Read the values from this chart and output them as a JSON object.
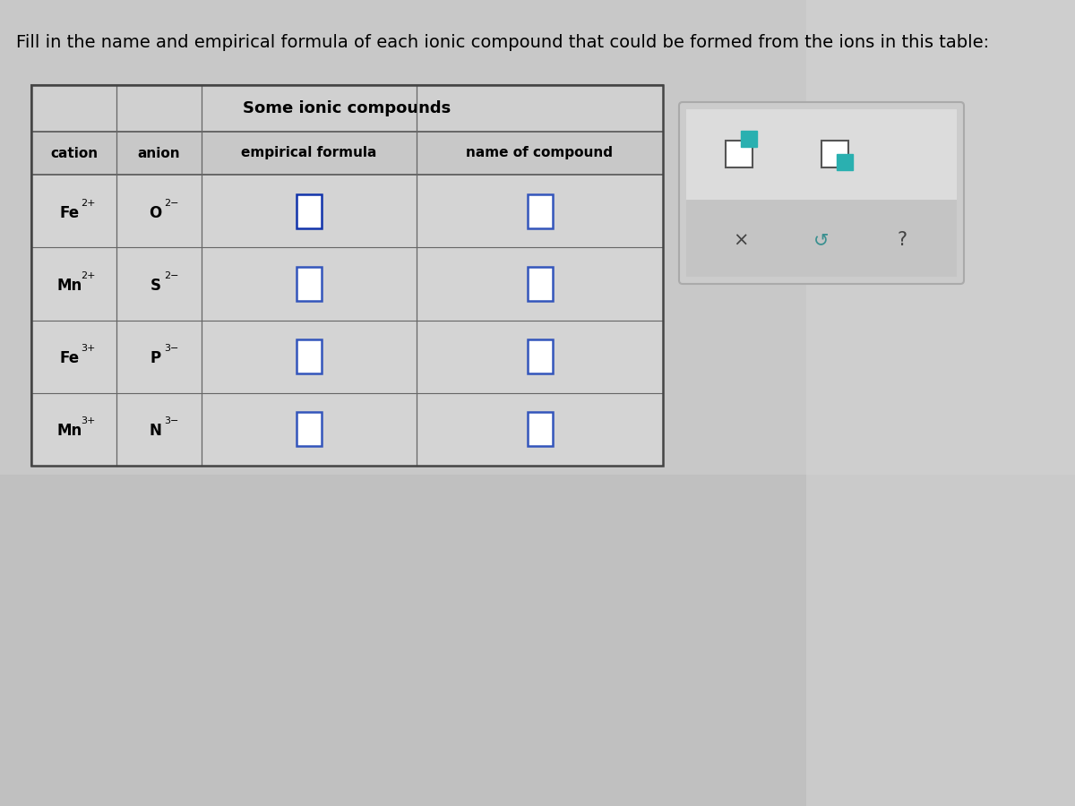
{
  "title": "Fill in the name and empirical formula of each ionic compound that could be formed from the ions in this table:",
  "table_title": "Some ionic compounds",
  "col_headers": [
    "cation",
    "anion",
    "empirical formula",
    "name of compound"
  ],
  "rows": [
    {
      "cation": "Fe",
      "cation_charge": "2+",
      "anion": "O",
      "anion_charge": "2−"
    },
    {
      "cation": "Mn",
      "cation_charge": "2+",
      "anion": "S",
      "anion_charge": "2−"
    },
    {
      "cation": "Fe",
      "cation_charge": "3+",
      "anion": "P",
      "anion_charge": "3−"
    },
    {
      "cation": "Mn",
      "cation_charge": "3+",
      "anion": "N",
      "anion_charge": "3−"
    }
  ],
  "bg_color": "#c8c8c8",
  "table_outer_bg": "#d0d0d0",
  "table_cell_bg": "#d8d8d8",
  "table_header_bg": "#c8c8c8",
  "input_box_blue": "#3355bb",
  "input_box_blue_dark": "#1133aa",
  "widget_bg": "#d0d0d0",
  "widget_top_bg": "#e0e0e0",
  "widget_bot_bg": "#c0c0c0",
  "teal_color": "#2ab0b0",
  "title_fontsize": 14,
  "table_title_fontsize": 13,
  "header_fontsize": 11,
  "cell_fontsize": 12
}
